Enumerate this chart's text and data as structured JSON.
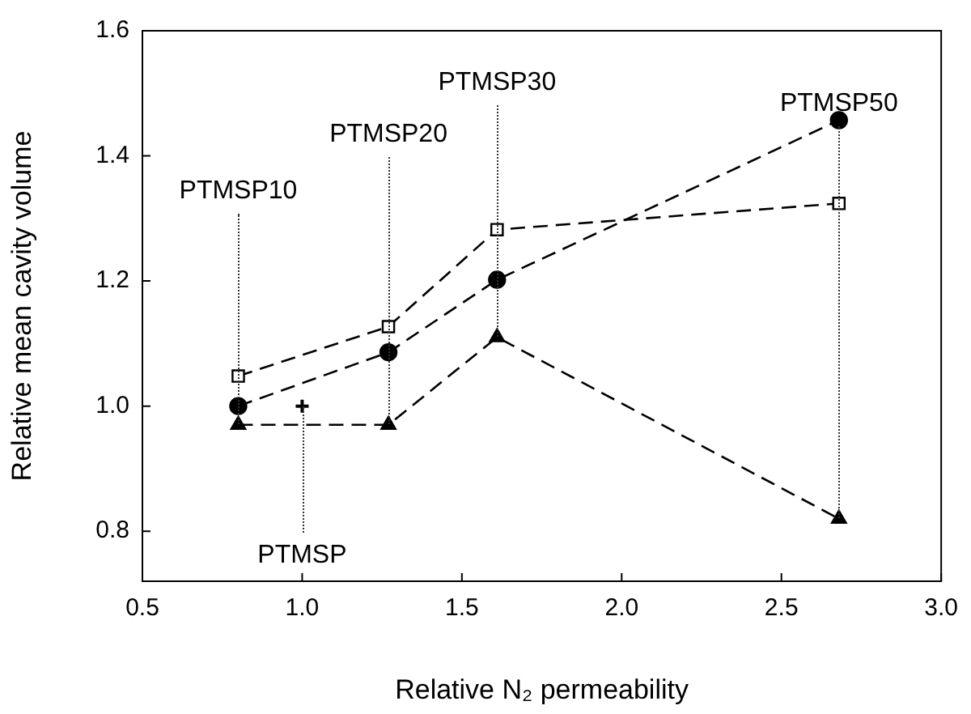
{
  "chart_data": {
    "type": "line",
    "xlabel": "Relative N₂ permeability",
    "ylabel": "Relative mean cavity volume",
    "xlim": [
      0.5,
      3.0
    ],
    "xticks": [
      0.5,
      {
        "value": 1,
        "label": "1.0"
      },
      1.5,
      {
        "value": 2,
        "label": "2.0"
      },
      2.5,
      {
        "value": 3,
        "label": "3.0"
      }
    ],
    "ylim": [
      0.72,
      1.6
    ],
    "yticks": [
      0.8,
      {
        "value": 1,
        "label": "1.0"
      },
      1.2,
      1.4,
      1.6
    ],
    "grid": false,
    "legend": false,
    "line_style": "dashed",
    "series": [
      {
        "color": "#000000",
        "marker": "circle",
        "x": [
          0.8,
          1.27,
          1.61,
          2.68
        ],
        "values": [
          1.0,
          1.086,
          1.202,
          1.457
        ]
      },
      {
        "color": "#000000",
        "marker": "square",
        "x": [
          0.8,
          1.27,
          1.61,
          2.68
        ],
        "values": [
          1.048,
          1.127,
          1.282,
          1.324
        ]
      },
      {
        "color": "#000000",
        "marker": "triangle",
        "x": [
          0.8,
          1.27,
          1.61,
          2.68
        ],
        "values": [
          0.97,
          0.97,
          1.11,
          0.82
        ]
      },
      {
        "type": "scatter",
        "color": "#000000",
        "marker": "cross",
        "x": [
          1.0
        ],
        "values": [
          1.0
        ]
      }
    ],
    "annotations": [
      {
        "text": "PTMSP10",
        "x": 0.8,
        "y": 0.97
      },
      {
        "text": "PTMSP",
        "x": 1.0,
        "y": 1.0
      },
      {
        "text": "PTMSP20",
        "x": 1.27,
        "y": 0.97
      },
      {
        "text": "PTMSP30",
        "x": 1.61,
        "y": 1.11
      },
      {
        "text": "PTMSP50",
        "x": 2.68,
        "y": 0.82
      }
    ]
  }
}
